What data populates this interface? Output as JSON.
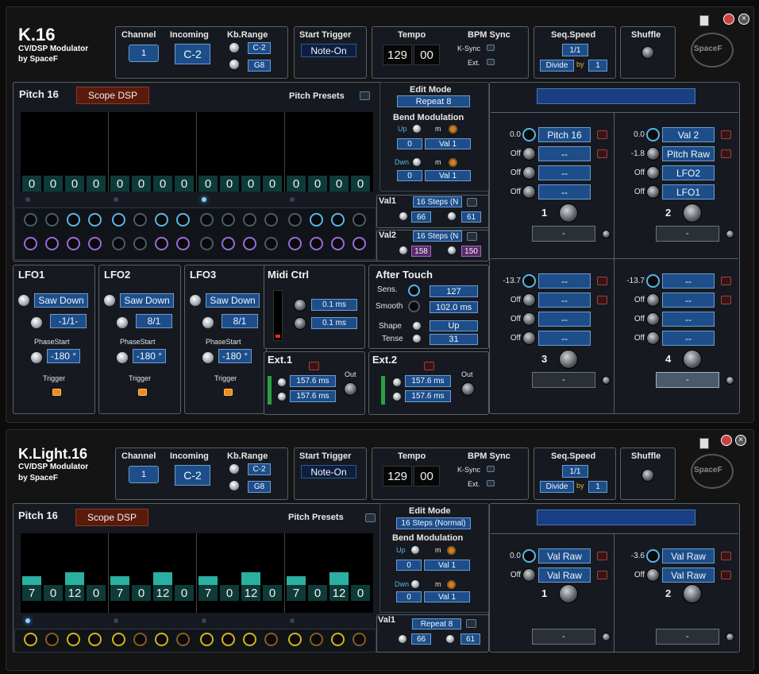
{
  "plugin1": {
    "title": "K.16",
    "subtitle": "CV/DSP Modulator",
    "author": "by SpaceF",
    "header": {
      "channel_label": "Channel",
      "channel": "1",
      "incoming_label": "Incoming",
      "incoming": "C-2",
      "kbrange_label": "Kb.Range",
      "kb_low": "C-2",
      "kb_high": "G8",
      "start_trigger_label": "Start Trigger",
      "start_trigger": "Note-On",
      "tempo_label": "Tempo",
      "tempo_bpm": "129",
      "tempo_frac": "00",
      "bpm_sync_label": "BPM Sync",
      "ksync_label": "K-Sync",
      "ext_label": "Ext.",
      "seq_speed_label": "Seq.Speed",
      "seq_speed": "1/1",
      "divide": "Divide",
      "by": "by",
      "divide_by": "1",
      "shuffle_label": "Shuffle",
      "logo": "SpaceF"
    },
    "pitch": {
      "title": "Pitch 16",
      "scope": "Scope DSP",
      "presets": "Pitch Presets",
      "steps": [
        "0",
        "0",
        "0",
        "0",
        "0",
        "0",
        "0",
        "0",
        "0",
        "0",
        "0",
        "0",
        "0",
        "0",
        "0",
        "0"
      ]
    },
    "edit": {
      "label": "Edit Mode",
      "mode": "Repeat 8",
      "bend_label": "Bend Modulation",
      "up": "Up",
      "m": "m",
      "up_val": "0",
      "up_src": "Val 1",
      "dwn": "Dwn",
      "dwn_val": "0",
      "dwn_src": "Val 1"
    },
    "val1": {
      "label": "Val1",
      "mode": "16 Steps (N",
      "a": "66",
      "b": "61"
    },
    "val2": {
      "label": "Val2",
      "mode": "16 Steps (N",
      "a": "158",
      "b": "150"
    },
    "lfo1": {
      "title": "LFO1",
      "wave": "Saw Down",
      "rate": "-1/1-",
      "phase_label": "PhaseStart",
      "phase": "-180 °",
      "trigger": "Trigger"
    },
    "lfo2": {
      "title": "LFO2",
      "wave": "Saw Down",
      "rate": "8/1",
      "phase_label": "PhaseStart",
      "phase": "-180 °",
      "trigger": "Trigger"
    },
    "lfo3": {
      "title": "LFO3",
      "wave": "Saw Down",
      "rate": "8/1",
      "phase_label": "PhaseStart",
      "phase": "-180 °",
      "trigger": "Trigger"
    },
    "midi": {
      "title": "Midi Ctrl",
      "a": "0.1 ms",
      "b": "0.1 ms"
    },
    "after": {
      "title": "After Touch",
      "sens_label": "Sens.",
      "sens": "127",
      "smooth_label": "Smooth",
      "smooth": "102.0 ms",
      "shape_label": "Shape",
      "shape": "Up",
      "tense_label": "Tense",
      "tense": "31"
    },
    "ext1": {
      "title": "Ext.1",
      "a": "157.6 ms",
      "b": "157.6 ms",
      "out": "Out"
    },
    "ext2": {
      "title": "Ext.2",
      "a": "157.6 ms",
      "b": "157.6 ms",
      "out": "Out"
    },
    "outs": [
      {
        "num": "1",
        "rows": [
          {
            "v": "0.0",
            "s": "Pitch 16"
          },
          {
            "v": "Off",
            "s": "--"
          },
          {
            "v": "Off",
            "s": "--"
          },
          {
            "v": "Off",
            "s": "--"
          }
        ],
        "bottom": "-"
      },
      {
        "num": "2",
        "rows": [
          {
            "v": "0.0",
            "s": "Val 2"
          },
          {
            "v": "-1.8",
            "s": "Pitch Raw"
          },
          {
            "v": "Off",
            "s": "LFO2"
          },
          {
            "v": "Off",
            "s": "LFO1"
          }
        ],
        "bottom": "-"
      },
      {
        "num": "3",
        "rows": [
          {
            "v": "-13.7",
            "s": "--"
          },
          {
            "v": "Off",
            "s": "--"
          },
          {
            "v": "Off",
            "s": "--"
          },
          {
            "v": "Off",
            "s": "--"
          }
        ],
        "bottom": "-"
      },
      {
        "num": "4",
        "rows": [
          {
            "v": "-13.7",
            "s": "--"
          },
          {
            "v": "Off",
            "s": "--"
          },
          {
            "v": "Off",
            "s": "--"
          },
          {
            "v": "Off",
            "s": "--"
          }
        ],
        "bottom": "-"
      }
    ]
  },
  "plugin2": {
    "title": "K.Light.16",
    "subtitle": "CV/DSP Modulator",
    "author": "by SpaceF",
    "header": {
      "channel_label": "Channel",
      "channel": "1",
      "incoming_label": "Incoming",
      "incoming": "C-2",
      "kbrange_label": "Kb.Range",
      "kb_low": "C-2",
      "kb_high": "G8",
      "start_trigger_label": "Start Trigger",
      "start_trigger": "Note-On",
      "tempo_label": "Tempo",
      "tempo_bpm": "129",
      "tempo_frac": "00",
      "bpm_sync_label": "BPM Sync",
      "ksync_label": "K-Sync",
      "ext_label": "Ext.",
      "seq_speed_label": "Seq.Speed",
      "seq_speed": "1/1",
      "divide": "Divide",
      "by": "by",
      "divide_by": "1",
      "shuffle_label": "Shuffle",
      "logo": "SpaceF"
    },
    "pitch": {
      "title": "Pitch 16",
      "scope": "Scope DSP",
      "presets": "Pitch Presets",
      "steps": [
        "7",
        "0",
        "12",
        "0",
        "7",
        "0",
        "12",
        "0",
        "7",
        "0",
        "12",
        "0",
        "7",
        "0",
        "12",
        "0"
      ]
    },
    "edit": {
      "label": "Edit Mode",
      "mode": "16 Steps (Normal)",
      "bend_label": "Bend Modulation",
      "up": "Up",
      "m": "m",
      "up_val": "0",
      "up_src": "Val 1",
      "dwn": "Dwn",
      "dwn_val": "0",
      "dwn_src": "Val 1"
    },
    "val1": {
      "label": "Val1",
      "mode": "Repeat 8",
      "a": "66",
      "b": "61"
    },
    "outs": [
      {
        "num": "1",
        "rows": [
          {
            "v": "0.0",
            "s": "Val Raw"
          },
          {
            "v": "Off",
            "s": "Val Raw"
          }
        ],
        "bottom": "-"
      },
      {
        "num": "2",
        "rows": [
          {
            "v": "-3.6",
            "s": "Val Raw"
          },
          {
            "v": "Off",
            "s": "Val Raw"
          }
        ],
        "bottom": "-"
      }
    ]
  }
}
